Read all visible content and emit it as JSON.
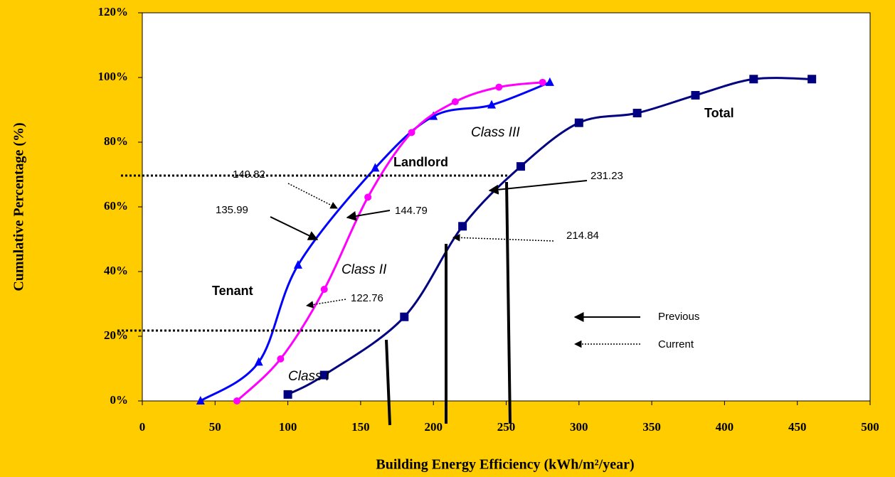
{
  "chart_data": {
    "type": "line",
    "xlabel": "Building Energy Efficiency (kWh/m²/year)",
    "ylabel": "Cumulative Percentage (%)",
    "xlim": [
      0,
      500
    ],
    "xticks": [
      0,
      50,
      100,
      150,
      200,
      250,
      300,
      350,
      400,
      450,
      500
    ],
    "ylim": [
      0,
      120
    ],
    "yticks": [
      {
        "value": 0,
        "label": "0%"
      },
      {
        "value": 20,
        "label": "20%"
      },
      {
        "value": 40,
        "label": "40%"
      },
      {
        "value": 60,
        "label": "60%"
      },
      {
        "value": 80,
        "label": "80%"
      },
      {
        "value": 100,
        "label": "100%"
      },
      {
        "value": 120,
        "label": "120%"
      }
    ],
    "grid": false,
    "series": [
      {
        "name": "Total",
        "color": "#000080",
        "marker": "square",
        "x": [
          100,
          125,
          180,
          220,
          260,
          300,
          340,
          380,
          420,
          460
        ],
        "values": [
          2,
          8,
          26,
          54,
          72.5,
          86,
          89,
          94.5,
          99.5,
          99.5
        ]
      },
      {
        "name": "Tenant",
        "color": "#0000ff",
        "marker": "triangle",
        "x": [
          40,
          80,
          107,
          160,
          200,
          240,
          280
        ],
        "values": [
          0,
          12,
          42,
          72,
          88,
          91.5,
          98.5
        ]
      },
      {
        "name": "Landlord",
        "color": "#ff00ff",
        "marker": "circle",
        "x": [
          65,
          95,
          125,
          155,
          185,
          215,
          245,
          275
        ],
        "values": [
          0,
          13,
          34.5,
          63,
          83,
          92.5,
          97,
          98.5
        ]
      }
    ],
    "annotations": [
      "Class I",
      "Class II",
      "Class III",
      "149.82",
      "135.99",
      "144.79",
      "122.76",
      "231.23",
      "214.84",
      "Previous",
      "Current"
    ]
  }
}
